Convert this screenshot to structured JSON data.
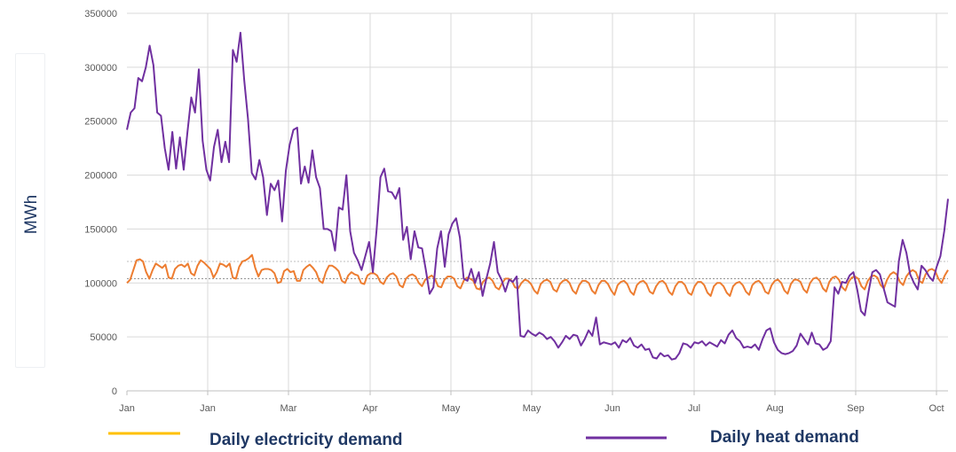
{
  "chart_data": {
    "type": "line",
    "ylabel": "MWh",
    "ylim": [
      0,
      350000
    ],
    "yticks": [
      0,
      50000,
      100000,
      150000,
      200000,
      250000,
      300000,
      350000
    ],
    "ytick_labels": [
      "0",
      "50000",
      "100000",
      "150000",
      "200000",
      "250000",
      "300000",
      "350000"
    ],
    "xticks": [
      "Jan",
      "Jan",
      "Mar",
      "Apr",
      "May",
      "May",
      "Jun",
      "Jul",
      "Aug",
      "Sep",
      "Oct"
    ],
    "grid": true,
    "legend_position": "bottom",
    "series": [
      {
        "name": "Daily electricity demand",
        "legend_color": "#FFC000",
        "line_color": "#ED7D31",
        "values": [
          100000,
          103000,
          112000,
          121000,
          122000,
          120000,
          110000,
          104000,
          112000,
          118000,
          116000,
          114000,
          117000,
          105000,
          104000,
          113000,
          116000,
          117000,
          115000,
          118000,
          109000,
          107000,
          116000,
          121000,
          119000,
          116000,
          113000,
          105000,
          110000,
          118000,
          117000,
          115000,
          118000,
          105000,
          104000,
          115000,
          120000,
          121000,
          123000,
          126000,
          114000,
          106000,
          112000,
          113000,
          113000,
          112000,
          109000,
          100000,
          101000,
          111000,
          113000,
          110000,
          111000,
          102000,
          102000,
          112000,
          115000,
          117000,
          114000,
          110000,
          102000,
          100000,
          110000,
          116000,
          116000,
          114000,
          111000,
          102000,
          100000,
          107000,
          110000,
          108000,
          107000,
          100000,
          99000,
          107000,
          109000,
          109000,
          107000,
          101000,
          99000,
          105000,
          108000,
          109000,
          106000,
          98000,
          96000,
          104000,
          107000,
          108000,
          106000,
          100000,
          97000,
          103000,
          105000,
          107000,
          104000,
          97000,
          96000,
          103000,
          106000,
          106000,
          104000,
          97000,
          95000,
          102000,
          105000,
          104000,
          102000,
          95000,
          94000,
          101000,
          104000,
          105000,
          102000,
          96000,
          94000,
          100000,
          104000,
          104000,
          102000,
          96000,
          95000,
          100000,
          103000,
          102000,
          99000,
          93000,
          90000,
          99000,
          102000,
          103000,
          101000,
          94000,
          92000,
          99000,
          102000,
          103000,
          100000,
          93000,
          90000,
          98000,
          102000,
          102000,
          100000,
          93000,
          90000,
          98000,
          102000,
          102000,
          99000,
          93000,
          89000,
          98000,
          101000,
          102000,
          99000,
          92000,
          89000,
          98000,
          101000,
          102000,
          99000,
          92000,
          90000,
          97000,
          101000,
          102000,
          99000,
          92000,
          89000,
          97000,
          101000,
          101000,
          98000,
          91000,
          89000,
          97000,
          101000,
          101000,
          98000,
          91000,
          88000,
          97000,
          100000,
          100000,
          97000,
          91000,
          88000,
          97000,
          100000,
          101000,
          98000,
          92000,
          89000,
          98000,
          101000,
          102000,
          99000,
          92000,
          90000,
          98000,
          102000,
          103000,
          100000,
          93000,
          90000,
          99000,
          103000,
          103000,
          101000,
          94000,
          91000,
          100000,
          104000,
          105000,
          102000,
          95000,
          92000,
          101000,
          105000,
          106000,
          103000,
          96000,
          93000,
          101000,
          105000,
          106000,
          104000,
          97000,
          94000,
          102000,
          106000,
          107000,
          105000,
          98000,
          95000,
          103000,
          108000,
          110000,
          108000,
          101000,
          98000,
          106000,
          110000,
          112000,
          110000,
          102000,
          100000,
          108000,
          112000,
          113000,
          111000,
          104000,
          100000,
          107000,
          112000
        ]
      },
      {
        "name": "Daily heat demand",
        "line_color": "#7030A0",
        "values": [
          242000,
          258000,
          262000,
          290000,
          287000,
          300000,
          320000,
          302000,
          258000,
          255000,
          225000,
          205000,
          240000,
          206000,
          235000,
          205000,
          240000,
          272000,
          258000,
          298000,
          232000,
          205000,
          195000,
          226000,
          242000,
          212000,
          231000,
          212000,
          316000,
          305000,
          332000,
          288000,
          252000,
          202000,
          196000,
          214000,
          198000,
          163000,
          192000,
          186000,
          195000,
          157000,
          204000,
          228000,
          242000,
          244000,
          192000,
          208000,
          193000,
          223000,
          198000,
          188000,
          150000,
          150000,
          148000,
          130000,
          170000,
          168000,
          200000,
          148000,
          128000,
          121000,
          112000,
          125000,
          138000,
          110000,
          150000,
          198000,
          206000,
          185000,
          184000,
          178000,
          188000,
          140000,
          152000,
          122000,
          148000,
          133000,
          132000,
          112000,
          90000,
          96000,
          132000,
          148000,
          115000,
          145000,
          155000,
          160000,
          142000,
          104000,
          102000,
          113000,
          100000,
          110000,
          88000,
          104000,
          118000,
          138000,
          110000,
          103000,
          92000,
          103000,
          101000,
          106000,
          51000,
          50000,
          56000,
          53000,
          51000,
          54000,
          52000,
          48000,
          50000,
          46000,
          40000,
          45000,
          51000,
          48000,
          52000,
          51000,
          42000,
          48000,
          56000,
          51000,
          68000,
          43000,
          45000,
          44000,
          43000,
          45000,
          40000,
          47000,
          45000,
          49000,
          42000,
          40000,
          43000,
          38000,
          39000,
          31000,
          30000,
          35000,
          32000,
          33000,
          29000,
          30000,
          35000,
          44000,
          43000,
          40000,
          45000,
          44000,
          46000,
          42000,
          45000,
          43000,
          41000,
          47000,
          44000,
          52000,
          56000,
          49000,
          46000,
          40000,
          41000,
          40000,
          43000,
          38000,
          48000,
          56000,
          58000,
          45000,
          38000,
          35000,
          34000,
          35000,
          37000,
          42000,
          53000,
          48000,
          43000,
          54000,
          44000,
          43000,
          38000,
          40000,
          46000,
          96000,
          90000,
          101000,
          100000,
          107000,
          110000,
          94000,
          74000,
          70000,
          92000,
          110000,
          112000,
          108000,
          95000,
          82000,
          80000,
          78000,
          120000,
          140000,
          128000,
          108000,
          100000,
          94000,
          116000,
          112000,
          106000,
          102000,
          115000,
          125000,
          148000,
          178000
        ]
      }
    ]
  }
}
